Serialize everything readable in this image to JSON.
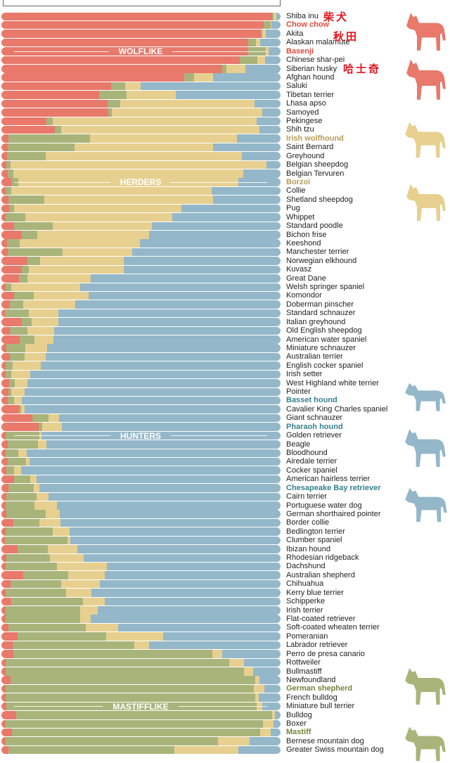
{
  "colors": {
    "wolflike": "#e8796b",
    "mastifflike": "#a9b47b",
    "herders": "#e7d08f",
    "hunters": "#94b7c9"
  },
  "highlight_colors": {
    "wolflike": "#df4b3e",
    "herders": "#b89c58",
    "hunters": "#37808e",
    "mastifflike": "#74843a"
  },
  "groups": [
    {
      "label": "WOLFLIKE",
      "row": 4
    },
    {
      "label": "HERDERS",
      "row": 19
    },
    {
      "label": "HUNTERS",
      "row": 48
    },
    {
      "label": "MASTIFFLIKE",
      "row": 79
    }
  ],
  "annotations": [
    {
      "text": "柴犬",
      "breed": "Shiba inu"
    },
    {
      "text": "秋田",
      "breed": "Akita"
    },
    {
      "text": "哈士奇",
      "breed": "Siberian husky"
    }
  ],
  "silhouettes": [
    {
      "icon": "dog-silhouette-icon",
      "group": "wolflike"
    },
    {
      "icon": "dog-silhouette-icon",
      "group": "wolflike"
    },
    {
      "icon": "dog-silhouette-icon",
      "group": "herders"
    },
    {
      "icon": "dog-silhouette-icon",
      "group": "herders"
    },
    {
      "icon": "dog-silhouette-icon",
      "group": "hunters"
    },
    {
      "icon": "dog-silhouette-icon",
      "group": "hunters"
    },
    {
      "icon": "dog-silhouette-icon",
      "group": "hunters"
    },
    {
      "icon": "dog-silhouette-icon",
      "group": "mastifflike"
    },
    {
      "icon": "dog-silhouette-icon",
      "group": "mastifflike"
    }
  ],
  "chart_data": {
    "type": "bar",
    "orientation": "horizontal-stacked-100",
    "series_order": [
      "wolflike",
      "mastifflike",
      "herders",
      "hunters"
    ],
    "xlim": [
      0,
      100
    ],
    "breeds": [
      {
        "name": "Shiba inu",
        "v": [
          97,
          0.5,
          1,
          1.5
        ]
      },
      {
        "name": "Chow chow",
        "v": [
          94,
          2.4,
          0.4,
          3.2
        ],
        "hl": "wolflike"
      },
      {
        "name": "Akita",
        "v": [
          93,
          0.4,
          1.3,
          5.3
        ]
      },
      {
        "name": "Alaskan malamute",
        "v": [
          88.5,
          2.6,
          1.7,
          7.2
        ]
      },
      {
        "name": "Basenji",
        "v": [
          88.3,
          6.4,
          1.1,
          4.2
        ],
        "hl": "wolflike"
      },
      {
        "name": "Chinese shar-pei",
        "v": [
          85.5,
          6.2,
          2.8,
          5.5
        ]
      },
      {
        "name": "Siberian husky",
        "v": [
          79.2,
          1.4,
          6.9,
          12.5
        ]
      },
      {
        "name": "Afghan hound",
        "v": [
          65.5,
          3.5,
          6.8,
          24.2
        ]
      },
      {
        "name": "Saluki",
        "v": [
          39.3,
          5,
          5.7,
          50
        ]
      },
      {
        "name": "Tibetan terrier",
        "v": [
          35,
          9.8,
          17.7,
          37.5
        ]
      },
      {
        "name": "Lhasa apso",
        "v": [
          38,
          4.6,
          48.2,
          9.2
        ]
      },
      {
        "name": "Samoyed",
        "v": [
          38.3,
          1.3,
          53.8,
          6.6
        ]
      },
      {
        "name": "Pekingese",
        "v": [
          16.2,
          2.3,
          73,
          8.5
        ]
      },
      {
        "name": "Shih tzu",
        "v": [
          19.2,
          2.2,
          71,
          7.6
        ]
      },
      {
        "name": "Irish wolfhound",
        "v": [
          2.5,
          29.3,
          52.5,
          15.7
        ],
        "hl": "herders"
      },
      {
        "name": "Saint Bernard",
        "v": [
          2.3,
          24,
          49.5,
          24.2
        ]
      },
      {
        "name": "Greyhound",
        "v": [
          2,
          13.8,
          70.4,
          13.8
        ]
      },
      {
        "name": "Belgian sheepdog",
        "v": [
          1.8,
          1.6,
          91.6,
          5
        ]
      },
      {
        "name": "Belgian Tervuren",
        "v": [
          2.2,
          2.2,
          82.2,
          13.4
        ]
      },
      {
        "name": "Borzoi",
        "v": [
          3.5,
          2.6,
          78.8,
          15.1
        ],
        "hl": "herders"
      },
      {
        "name": "Collie",
        "v": [
          1.5,
          2,
          71.7,
          24.8
        ]
      },
      {
        "name": "Shetland sheepdog",
        "v": [
          2.6,
          12.8,
          60.3,
          24.3
        ]
      },
      {
        "name": "Pug",
        "v": [
          2.8,
          1.7,
          60,
          35.5
        ]
      },
      {
        "name": "Whippet",
        "v": [
          1.5,
          7.1,
          52.6,
          38.8
        ]
      },
      {
        "name": "Standard poodle",
        "v": [
          4.6,
          13.7,
          35.6,
          46.1
        ]
      },
      {
        "name": "Bichon frise",
        "v": [
          7.2,
          5.6,
          40,
          47.2
        ]
      },
      {
        "name": "Keeshond",
        "v": [
          2,
          4.5,
          43.1,
          50.4
        ]
      },
      {
        "name": "Manchester terrier",
        "v": [
          2.2,
          19.7,
          24.9,
          53.2
        ]
      },
      {
        "name": "Norwegian elkhound",
        "v": [
          9.2,
          4.6,
          30,
          56.2
        ]
      },
      {
        "name": "Kuvasz",
        "v": [
          7.4,
          2.4,
          34,
          56.2
        ]
      },
      {
        "name": "Great Dane",
        "v": [
          6.2,
          3,
          22.7,
          68.1
        ]
      },
      {
        "name": "Welsh springer spaniel",
        "v": [
          1.5,
          2,
          24.6,
          71.9
        ]
      },
      {
        "name": "Komondor",
        "v": [
          4.5,
          7,
          19.8,
          68.7
        ]
      },
      {
        "name": "Doberman pinscher",
        "v": [
          3,
          4.7,
          18.7,
          73.6
        ]
      },
      {
        "name": "Standard schnauzer",
        "v": [
          1.3,
          8.4,
          10.7,
          79.6
        ]
      },
      {
        "name": "Italian greyhound",
        "v": [
          7.2,
          3.7,
          9.4,
          79.7
        ]
      },
      {
        "name": "Old English sheepdog",
        "v": [
          3,
          6.3,
          9.5,
          81.2
        ]
      },
      {
        "name": "American water spaniel",
        "v": [
          6.5,
          5.3,
          6.9,
          81.3
        ]
      },
      {
        "name": "Miniature schnauzer",
        "v": [
          1.7,
          6.9,
          7.8,
          83.6
        ]
      },
      {
        "name": "Australian terrier",
        "v": [
          3,
          5.2,
          7.7,
          84.1
        ]
      },
      {
        "name": "English cocker spaniel",
        "v": [
          1.5,
          2.5,
          10.2,
          85.8
        ]
      },
      {
        "name": "Irish setter",
        "v": [
          1.5,
          2,
          6.8,
          89.7
        ]
      },
      {
        "name": "West Highland white terrier",
        "v": [
          2.8,
          1.9,
          4.6,
          90.7
        ]
      },
      {
        "name": "Pointer",
        "v": [
          2.5,
          1.1,
          4.8,
          91.6
        ]
      },
      {
        "name": "Basset hound",
        "v": [
          2.3,
          2.3,
          2.6,
          92.8
        ],
        "hl": "hunters"
      },
      {
        "name": "Cavalier King Charles spaniel",
        "v": [
          6.2,
          0.9,
          1.3,
          91.6
        ]
      },
      {
        "name": "Giant schnauzer",
        "v": [
          11,
          5.9,
          3.7,
          79.4
        ]
      },
      {
        "name": "Pharaoh hound",
        "v": [
          13.4,
          1.2,
          7,
          78.4
        ],
        "hl": "hunters"
      },
      {
        "name": "Golden retriever",
        "v": [
          1.5,
          12,
          0.8,
          85.7
        ]
      },
      {
        "name": "Beagle",
        "v": [
          2.3,
          10.8,
          2.9,
          84
        ]
      },
      {
        "name": "Bloodhound",
        "v": [
          1.5,
          4.5,
          3,
          91
        ]
      },
      {
        "name": "Airedale terrier",
        "v": [
          2.3,
          6.5,
          1.2,
          90
        ]
      },
      {
        "name": "Cocker spaniel",
        "v": [
          1.7,
          2.9,
          2.5,
          92.9
        ]
      },
      {
        "name": "American hairless terrier",
        "v": [
          4.5,
          5.8,
          2.3,
          87.4
        ]
      },
      {
        "name": "Chesapeake Bay retriever",
        "v": [
          2.6,
          9,
          1.9,
          86.5
        ],
        "hl": "hunters"
      },
      {
        "name": "Cairn terrier",
        "v": [
          1.7,
          10.8,
          4.3,
          83.2
        ]
      },
      {
        "name": "Portuguese water dog",
        "v": [
          1.5,
          10.3,
          8.2,
          80
        ]
      },
      {
        "name": "German shorthaired pointer",
        "v": [
          1.7,
          14.2,
          5,
          79.1
        ]
      },
      {
        "name": "Border collie",
        "v": [
          4.3,
          9.3,
          7.5,
          78.9
        ]
      },
      {
        "name": "Bedlington terrier",
        "v": [
          1.5,
          16.8,
          6.2,
          75.5
        ]
      },
      {
        "name": "Clumber spaniel",
        "v": [
          1.3,
          22.5,
          0.8,
          75.4
        ]
      },
      {
        "name": "Ibizan hound",
        "v": [
          5.9,
          10.8,
          10.6,
          72.7
        ]
      },
      {
        "name": "Rhodesian ridgeback",
        "v": [
          1.7,
          15.6,
          12.1,
          70.6
        ]
      },
      {
        "name": "Dachshund",
        "v": [
          1.5,
          18.5,
          17.7,
          62.3
        ]
      },
      {
        "name": "Australian shepherd",
        "v": [
          7.7,
          16.2,
          13.1,
          63
        ]
      },
      {
        "name": "Chihuahua",
        "v": [
          3.3,
          18,
          13.9,
          64.8
        ]
      },
      {
        "name": "Kerry blue terrier",
        "v": [
          1.5,
          21.6,
          9.2,
          67.7
        ]
      },
      {
        "name": "Schipperke",
        "v": [
          3.5,
          25.8,
          7.8,
          62.9
        ]
      },
      {
        "name": "Irish terrier",
        "v": [
          1.5,
          26.7,
          6.3,
          65.5
        ]
      },
      {
        "name": "Flat-coated retriever",
        "v": [
          1.5,
          26.7,
          3.7,
          68.1
        ]
      },
      {
        "name": "Soft-coated wheaten terrier",
        "v": [
          2.5,
          27.7,
          11.5,
          58.3
        ]
      },
      {
        "name": "Pomeranian",
        "v": [
          5.7,
          31.9,
          20.4,
          42
        ]
      },
      {
        "name": "Labrador retriever",
        "v": [
          4.1,
          43.4,
          5.3,
          47.2
        ]
      },
      {
        "name": "Perro de presa canario",
        "v": [
          4.3,
          71.2,
          3.7,
          20.8
        ]
      },
      {
        "name": "Rottweiler",
        "v": [
          1.5,
          80.2,
          5.1,
          13.2
        ]
      },
      {
        "name": "Bullmastiff",
        "v": [
          1.5,
          85.4,
          3.4,
          9.7
        ]
      },
      {
        "name": "Newfoundland",
        "v": [
          3.3,
          87.6,
          1.5,
          7.6
        ]
      },
      {
        "name": "German shepherd",
        "v": [
          1.5,
          89,
          3.7,
          5.8
        ],
        "hl": "mastifflike"
      },
      {
        "name": "French bulldog",
        "v": [
          1.5,
          89.5,
          1.1,
          7.9
        ]
      },
      {
        "name": "Miniature bull terrier",
        "v": [
          1.7,
          89.8,
          2,
          6.5
        ]
      },
      {
        "name": "Bulldog",
        "v": [
          5.3,
          91.8,
          1,
          1.9
        ]
      },
      {
        "name": "Boxer",
        "v": [
          1.5,
          92.3,
          3.7,
          2.5
        ]
      },
      {
        "name": "Mastiff",
        "v": [
          3.8,
          89,
          3.7,
          3.5
        ],
        "hl": "mastifflike"
      },
      {
        "name": "Bernese mountain dog",
        "v": [
          1.5,
          76,
          11.5,
          11
        ]
      },
      {
        "name": "Greater Swiss mountain dog",
        "v": [
          2.5,
          59.5,
          22.8,
          15.2
        ]
      }
    ]
  }
}
